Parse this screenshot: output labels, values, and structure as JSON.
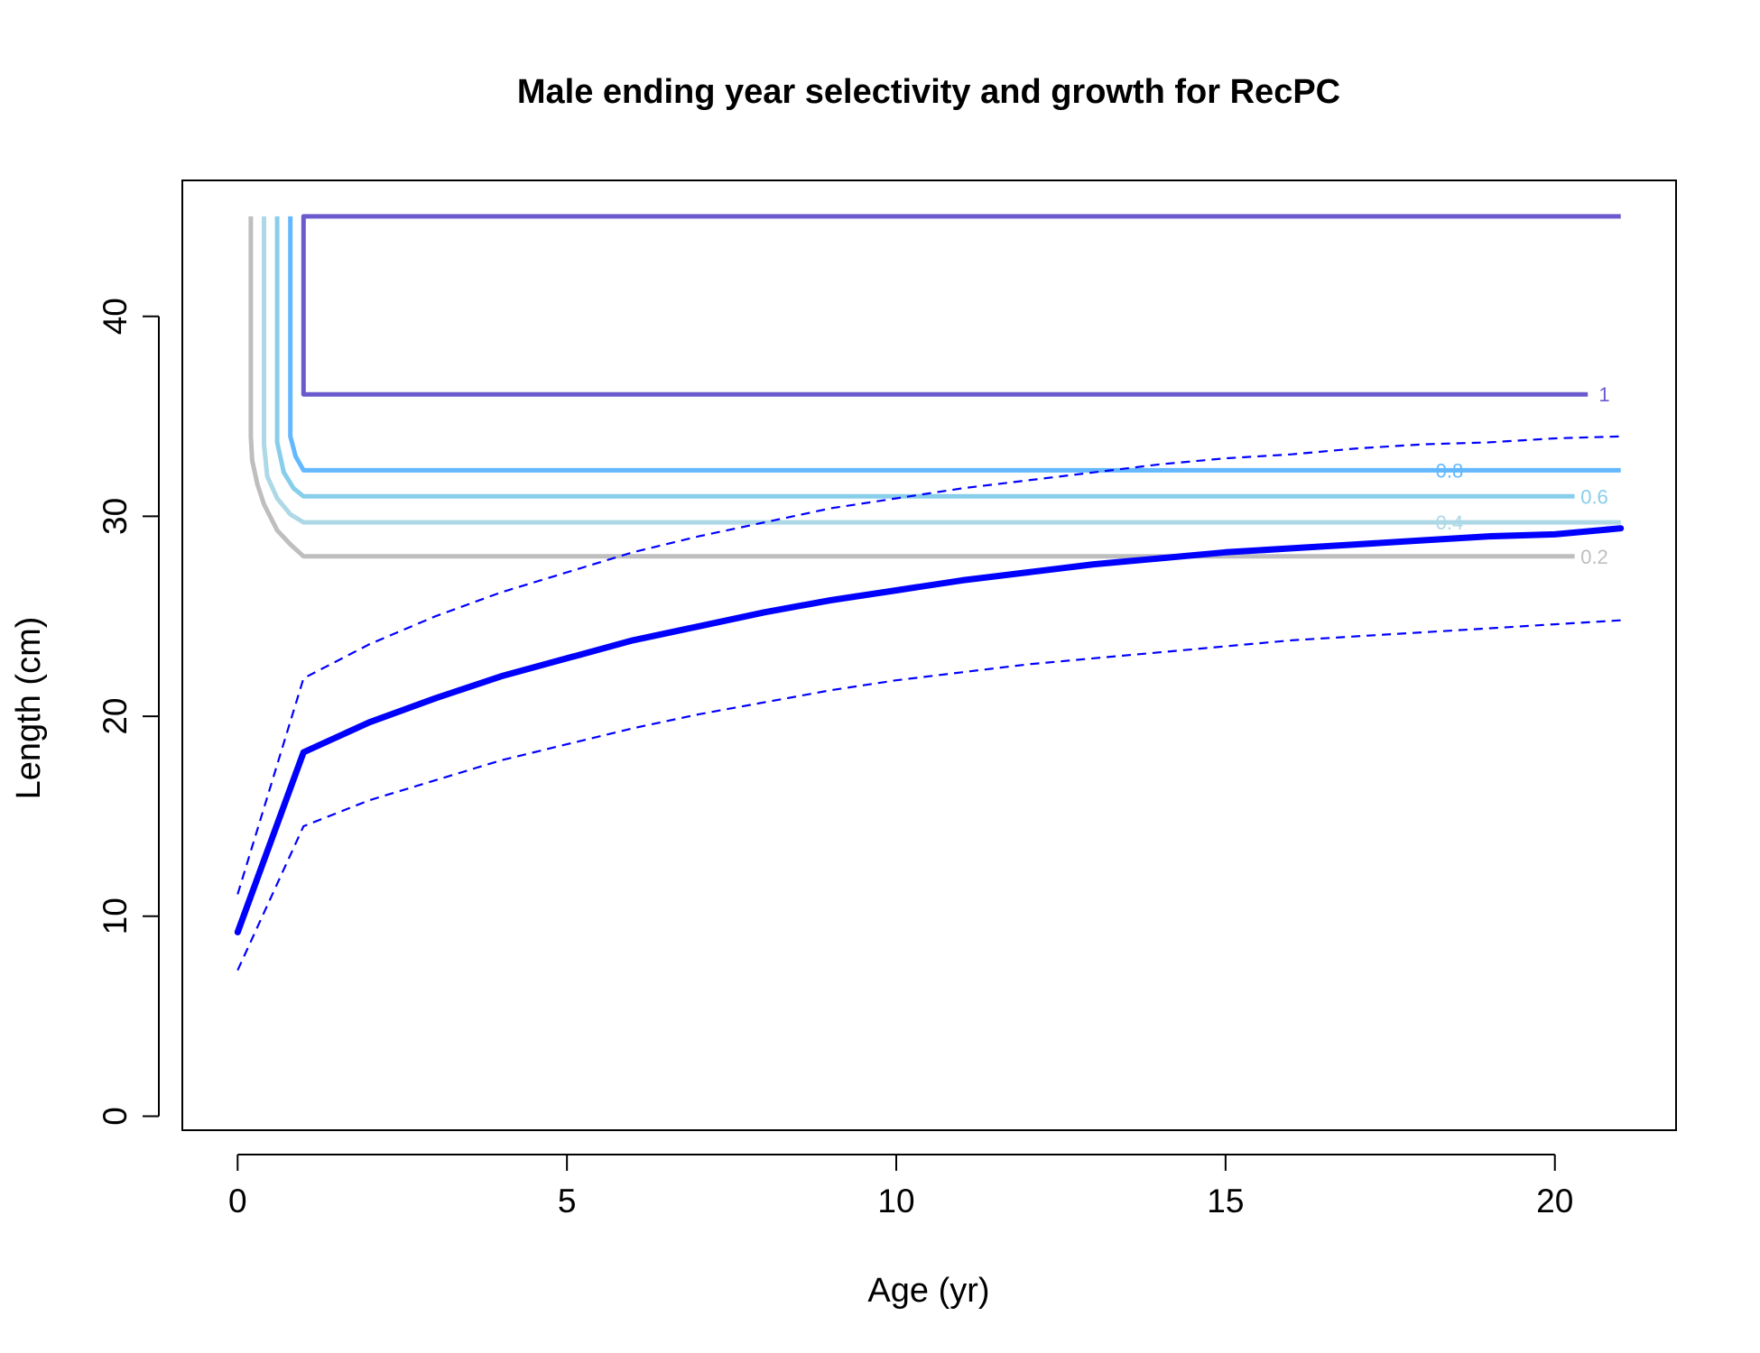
{
  "chart_data": {
    "type": "line",
    "title": "Male ending year selectivity and growth for RecPC",
    "xlabel": "Age (yr)",
    "ylabel": "Length (cm)",
    "xlim": [
      -0.84,
      21.84
    ],
    "ylim": [
      -0.7,
      46.8
    ],
    "xticks": [
      0,
      5,
      10,
      15,
      20
    ],
    "yticks": [
      0,
      10,
      20,
      30,
      40
    ],
    "grid": false,
    "growth": {
      "color": "#0000ff",
      "mean": [
        [
          0,
          9.2
        ],
        [
          1,
          18.2
        ],
        [
          2,
          19.7
        ],
        [
          3,
          20.9
        ],
        [
          4,
          22.0
        ],
        [
          5,
          22.9
        ],
        [
          6,
          23.8
        ],
        [
          7,
          24.5
        ],
        [
          8,
          25.2
        ],
        [
          9,
          25.8
        ],
        [
          10,
          26.3
        ],
        [
          11,
          26.8
        ],
        [
          12,
          27.2
        ],
        [
          13,
          27.6
        ],
        [
          14,
          27.9
        ],
        [
          15,
          28.2
        ],
        [
          16,
          28.4
        ],
        [
          17,
          28.6
        ],
        [
          18,
          28.8
        ],
        [
          19,
          29.0
        ],
        [
          20,
          29.1
        ],
        [
          21,
          29.4
        ]
      ],
      "upper": [
        [
          0,
          11.1
        ],
        [
          1,
          21.9
        ],
        [
          2,
          23.6
        ],
        [
          3,
          25.0
        ],
        [
          4,
          26.2
        ],
        [
          5,
          27.2
        ],
        [
          6,
          28.2
        ],
        [
          7,
          29.0
        ],
        [
          8,
          29.7
        ],
        [
          9,
          30.4
        ],
        [
          10,
          30.9
        ],
        [
          11,
          31.4
        ],
        [
          12,
          31.8
        ],
        [
          13,
          32.2
        ],
        [
          14,
          32.6
        ],
        [
          15,
          32.9
        ],
        [
          16,
          33.1
        ],
        [
          17,
          33.4
        ],
        [
          18,
          33.6
        ],
        [
          19,
          33.7
        ],
        [
          20,
          33.9
        ],
        [
          21,
          34.0
        ]
      ],
      "lower": [
        [
          0,
          7.3
        ],
        [
          1,
          14.5
        ],
        [
          2,
          15.8
        ],
        [
          3,
          16.8
        ],
        [
          4,
          17.8
        ],
        [
          5,
          18.6
        ],
        [
          6,
          19.4
        ],
        [
          7,
          20.1
        ],
        [
          8,
          20.7
        ],
        [
          9,
          21.3
        ],
        [
          10,
          21.8
        ],
        [
          11,
          22.2
        ],
        [
          12,
          22.6
        ],
        [
          13,
          22.9
        ],
        [
          14,
          23.2
        ],
        [
          15,
          23.5
        ],
        [
          16,
          23.8
        ],
        [
          17,
          24.0
        ],
        [
          18,
          24.2
        ],
        [
          19,
          24.4
        ],
        [
          20,
          24.6
        ],
        [
          21,
          24.8
        ]
      ]
    },
    "selectivity_contours": [
      {
        "level": 0.2,
        "label": "0.2",
        "color": "#bebebe",
        "label_at": [
          20.6,
          28.0
        ],
        "points": [
          [
            0.2,
            45
          ],
          [
            0.2,
            34
          ],
          [
            0.22,
            32.8
          ],
          [
            0.3,
            31.6
          ],
          [
            0.4,
            30.6
          ],
          [
            0.6,
            29.3
          ],
          [
            0.8,
            28.6
          ],
          [
            1,
            28.0
          ],
          [
            20.3,
            28.0
          ]
        ]
      },
      {
        "level": 0.4,
        "label": "0.4",
        "color": "#add8e6",
        "label_at": [
          18.4,
          29.7
        ],
        "points": [
          [
            0.4,
            45
          ],
          [
            0.4,
            33.6
          ],
          [
            0.45,
            32.0
          ],
          [
            0.6,
            30.9
          ],
          [
            0.8,
            30.1
          ],
          [
            1,
            29.7
          ],
          [
            18.2,
            29.7
          ],
          [
            18.6,
            29.7
          ],
          [
            21,
            29.7
          ]
        ]
      },
      {
        "level": 0.6,
        "label": "0.6",
        "color": "#87ceeb",
        "label_at": [
          20.6,
          31.0
        ],
        "points": [
          [
            0.6,
            45
          ],
          [
            0.6,
            33.7
          ],
          [
            0.7,
            32.2
          ],
          [
            0.85,
            31.4
          ],
          [
            1,
            31.0
          ],
          [
            20.3,
            31.0
          ]
        ]
      },
      {
        "level": 0.8,
        "label": "0.8",
        "color": "#63b8ff",
        "label_at": [
          18.4,
          32.3
        ],
        "points": [
          [
            0.8,
            45
          ],
          [
            0.8,
            34.0
          ],
          [
            0.88,
            33.0
          ],
          [
            1,
            32.3
          ],
          [
            18.2,
            32.3
          ],
          [
            18.6,
            32.3
          ],
          [
            21,
            32.3
          ]
        ]
      },
      {
        "level": 1,
        "label": "1",
        "color": "#6a5acd",
        "label_at": [
          20.75,
          36.1
        ],
        "points": [
          [
            21,
            45
          ],
          [
            1,
            45
          ],
          [
            1,
            36.1
          ],
          [
            20.5,
            36.1
          ]
        ]
      }
    ]
  }
}
